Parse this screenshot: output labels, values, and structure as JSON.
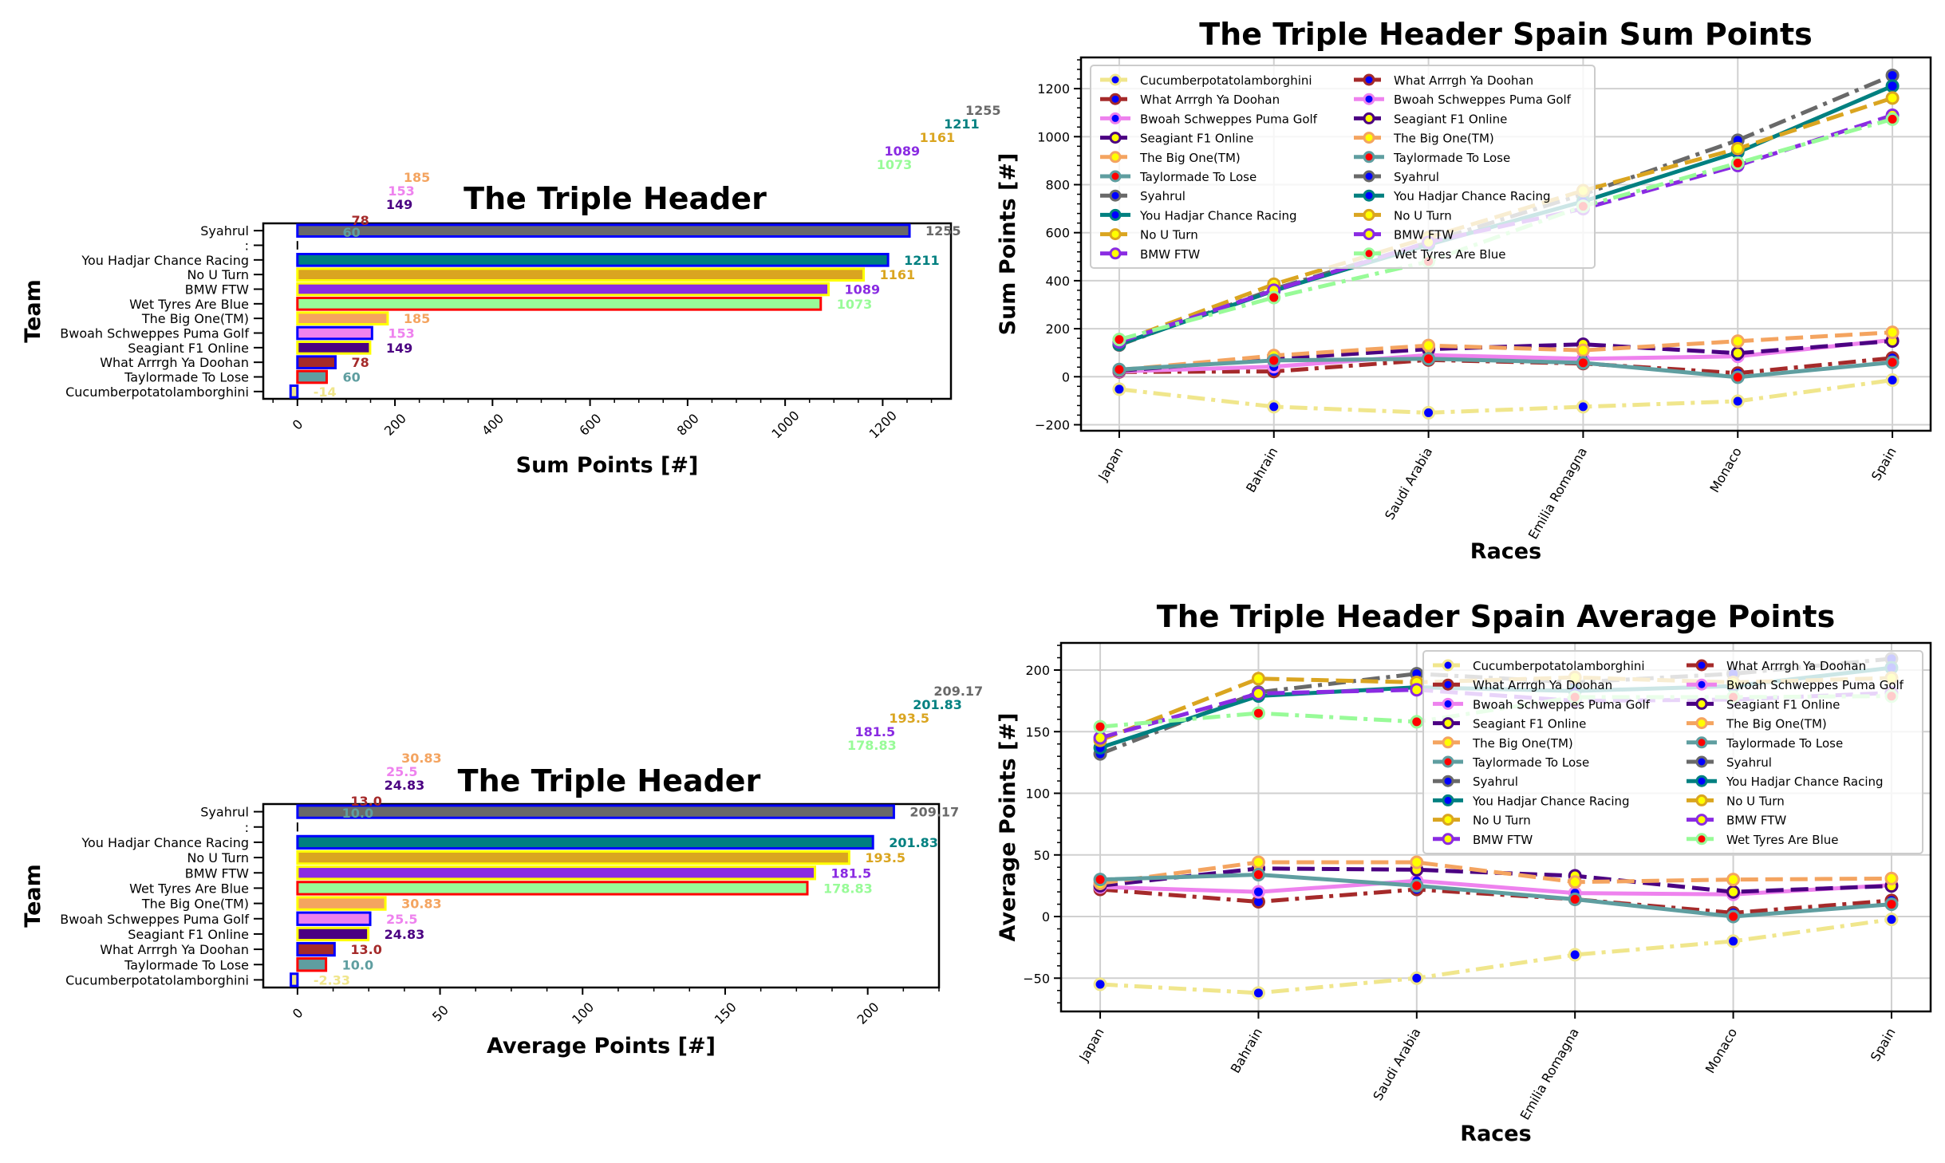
{
  "chart_data": [
    {
      "id": "sum-bar",
      "type": "bar",
      "orientation": "horizontal",
      "title": "The Triple Header",
      "xlabel": "Sum Points [#]",
      "ylabel": "Team",
      "xlim": [
        -70,
        1340
      ],
      "xticks": [
        "0",
        "200",
        "400",
        "600",
        "800",
        "1000",
        "1200"
      ],
      "xtick_values": [
        0,
        200,
        400,
        600,
        800,
        1000,
        1200
      ],
      "categories": [
        "Syahrul",
        ":",
        "You Hadjar Chance Racing",
        "No U Turn",
        "BMW FTW",
        "Wet Tyres Are Blue",
        "The Big One(TM)",
        "Bwoah Schweppes Puma Golf",
        "Seagiant F1 Online",
        "What Arrrgh Ya Doohan",
        "Taylormade To Lose",
        "Cucumberpotatolamborghini"
      ],
      "values": [
        1255,
        0,
        1211,
        1161,
        1089,
        1073,
        185,
        153,
        149,
        78,
        60,
        -14
      ],
      "labels": [
        "1255",
        "",
        "1211",
        "1161",
        "1089",
        "1073",
        "185",
        "153",
        "149",
        "78",
        "60",
        "-14"
      ],
      "fill_colors": [
        "#696969",
        "#000000",
        "#008080",
        "#DAA520",
        "#8A2BE2",
        "#98FB98",
        "#F4A460",
        "#EE82EE",
        "#4B0082",
        "#A52A2A",
        "#5F9EA0",
        "#F0E68C"
      ],
      "edge_colors": [
        "#0000FF",
        "#000000",
        "#0000FF",
        "#FFFF00",
        "#FFFF00",
        "#FF0000",
        "#FFFF00",
        "#0000FF",
        "#FFFF00",
        "#0000FF",
        "#FF0000",
        "#0000FF"
      ],
      "label_colors": [
        "#696969",
        "#000000",
        "#008080",
        "#DAA520",
        "#8A2BE2",
        "#98FB98",
        "#F4A460",
        "#EE82EE",
        "#4B0082",
        "#A52A2A",
        "#5F9EA0",
        "#F0E68C"
      ]
    },
    {
      "id": "avg-bar",
      "type": "bar",
      "orientation": "horizontal",
      "title": "The Triple Header",
      "xlabel": "Average Points [#]",
      "ylabel": "Team",
      "xlim": [
        -12,
        225
      ],
      "xticks": [
        "0",
        "50",
        "100",
        "150",
        "200"
      ],
      "xtick_values": [
        0,
        50,
        100,
        150,
        200
      ],
      "categories": [
        "Syahrul",
        ":",
        "You Hadjar Chance Racing",
        "No U Turn",
        "BMW FTW",
        "Wet Tyres Are Blue",
        "The Big One(TM)",
        "Bwoah Schweppes Puma Golf",
        "Seagiant F1 Online",
        "What Arrrgh Ya Doohan",
        "Taylormade To Lose",
        "Cucumberpotatolamborghini"
      ],
      "values": [
        209.17,
        0,
        201.83,
        193.5,
        181.5,
        178.83,
        30.83,
        25.5,
        24.83,
        13.0,
        10.0,
        -2.33
      ],
      "labels": [
        "209.17",
        "",
        "201.83",
        "193.5",
        "181.5",
        "178.83",
        "30.83",
        "25.5",
        "24.83",
        "13.0",
        "10.0",
        "-2.33"
      ],
      "fill_colors": [
        "#696969",
        "#000000",
        "#008080",
        "#DAA520",
        "#8A2BE2",
        "#98FB98",
        "#F4A460",
        "#EE82EE",
        "#4B0082",
        "#A52A2A",
        "#5F9EA0",
        "#F0E68C"
      ],
      "edge_colors": [
        "#0000FF",
        "#000000",
        "#0000FF",
        "#FFFF00",
        "#FFFF00",
        "#FF0000",
        "#FFFF00",
        "#0000FF",
        "#FFFF00",
        "#0000FF",
        "#FF0000",
        "#0000FF"
      ],
      "label_colors": [
        "#696969",
        "#000000",
        "#008080",
        "#DAA520",
        "#8A2BE2",
        "#98FB98",
        "#F4A460",
        "#EE82EE",
        "#4B0082",
        "#A52A2A",
        "#5F9EA0",
        "#F0E68C"
      ]
    },
    {
      "id": "sum-line",
      "type": "line",
      "title": "The Triple Header Spain Sum Points",
      "xlabel": "Races",
      "ylabel": "Sum Points [#]",
      "x": [
        "Japan",
        "Bahrain",
        "Saudi Arabia",
        "Emilia Romagna",
        "Monaco",
        "Spain"
      ],
      "ylim": [
        -225,
        1330
      ],
      "yticks": [
        "−200",
        "0",
        "200",
        "400",
        "600",
        "800",
        "1000",
        "1200"
      ],
      "ytick_values": [
        -200,
        0,
        200,
        400,
        600,
        800,
        1000,
        1200
      ],
      "grid": true,
      "legend": {
        "placement": "upper-left",
        "columns": 2
      },
      "series": [
        {
          "name": "Cucumberpotatolamborghini",
          "values": [
            -52,
            -125,
            -150,
            -125,
            -102,
            -14
          ],
          "color": "#F0E68C",
          "marker_face": "#0000FF",
          "dash": "dashdot"
        },
        {
          "name": "What Arrrgh Ya Doohan",
          "values": [
            20,
            22,
            70,
            55,
            15,
            78
          ],
          "color": "#A52A2A",
          "marker_face": "#0000FF",
          "dash": "dashdot"
        },
        {
          "name": "Bwoah Schweppes Puma Golf",
          "values": [
            22,
            42,
            90,
            75,
            85,
            153
          ],
          "color": "#EE82EE",
          "marker_face": "#0000FF",
          "dash": "solid"
        },
        {
          "name": "Seagiant F1 Online",
          "values": [
            25,
            75,
            115,
            135,
            98,
            149
          ],
          "color": "#4B0082",
          "marker_face": "#FFFF00",
          "dash": "dashed"
        },
        {
          "name": "The Big One(TM)",
          "values": [
            28,
            88,
            130,
            110,
            148,
            185
          ],
          "color": "#F4A460",
          "marker_face": "#FFFF00",
          "dash": "dashed"
        },
        {
          "name": "Taylormade To Lose",
          "values": [
            30,
            68,
            75,
            58,
            -2,
            60
          ],
          "color": "#5F9EA0",
          "marker_face": "#FF0000",
          "dash": "solid"
        },
        {
          "name": "Syahrul",
          "values": [
            132,
            365,
            560,
            760,
            985,
            1255
          ],
          "color": "#696969",
          "marker_face": "#0000FF",
          "dash": "dashdot"
        },
        {
          "name": "You Hadjar Chance Racing",
          "values": [
            135,
            358,
            550,
            730,
            935,
            1211
          ],
          "color": "#008080",
          "marker_face": "#0000FF",
          "dash": "solid"
        },
        {
          "name": "No U Turn",
          "values": [
            145,
            385,
            580,
            775,
            950,
            1161
          ],
          "color": "#DAA520",
          "marker_face": "#FFFF00",
          "dash": "dashed"
        },
        {
          "name": "BMW FTW",
          "values": [
            145,
            360,
            560,
            700,
            880,
            1089
          ],
          "color": "#8A2BE2",
          "marker_face": "#FFFF00",
          "dash": "dashed"
        },
        {
          "name": "Wet Tyres Are Blue",
          "values": [
            155,
            330,
            480,
            710,
            890,
            1073
          ],
          "color": "#98FB98",
          "marker_face": "#FF0000",
          "dash": "dashdot"
        }
      ]
    },
    {
      "id": "avg-line",
      "type": "line",
      "title": "The Triple Header Spain Average Points",
      "xlabel": "Races",
      "ylabel": "Average Points [#]",
      "x": [
        "Japan",
        "Bahrain",
        "Saudi Arabia",
        "Emilia Romagna",
        "Monaco",
        "Spain"
      ],
      "ylim": [
        -77,
        222
      ],
      "yticks": [
        "−50",
        "0",
        "50",
        "100",
        "150",
        "200"
      ],
      "ytick_values": [
        -50,
        0,
        50,
        100,
        150,
        200
      ],
      "grid": true,
      "legend": {
        "placement": "upper-right",
        "columns": 2
      },
      "series": [
        {
          "name": "Cucumberpotatolamborghini",
          "values": [
            -55,
            -62,
            -50,
            -31,
            -20,
            -2.33
          ],
          "color": "#F0E68C",
          "marker_face": "#0000FF",
          "dash": "dashdot"
        },
        {
          "name": "What Arrrgh Ya Doohan",
          "values": [
            22,
            12,
            22,
            14,
            3,
            13
          ],
          "color": "#A52A2A",
          "marker_face": "#0000FF",
          "dash": "dashdot"
        },
        {
          "name": "Bwoah Schweppes Puma Golf",
          "values": [
            24,
            20,
            29,
            19,
            18,
            25.5
          ],
          "color": "#EE82EE",
          "marker_face": "#0000FF",
          "dash": "solid"
        },
        {
          "name": "Seagiant F1 Online",
          "values": [
            25,
            39,
            38,
            33,
            20,
            24.83
          ],
          "color": "#4B0082",
          "marker_face": "#FFFF00",
          "dash": "dashed"
        },
        {
          "name": "The Big One(TM)",
          "values": [
            27,
            44,
            44,
            28,
            30,
            30.83
          ],
          "color": "#F4A460",
          "marker_face": "#FFFF00",
          "dash": "dashed"
        },
        {
          "name": "Taylormade To Lose",
          "values": [
            30,
            34,
            25,
            14,
            0,
            10.0
          ],
          "color": "#5F9EA0",
          "marker_face": "#FF0000",
          "dash": "solid"
        },
        {
          "name": "Syahrul",
          "values": [
            132,
            182,
            197,
            190,
            197,
            209.17
          ],
          "color": "#696969",
          "marker_face": "#0000FF",
          "dash": "dashdot"
        },
        {
          "name": "You Hadjar Chance Racing",
          "values": [
            137,
            179,
            186,
            183,
            187,
            201.83
          ],
          "color": "#008080",
          "marker_face": "#0000FF",
          "dash": "solid"
        },
        {
          "name": "No U Turn",
          "values": [
            143,
            193,
            190,
            194,
            190,
            193.5
          ],
          "color": "#DAA520",
          "marker_face": "#FFFF00",
          "dash": "dashed"
        },
        {
          "name": "BMW FTW",
          "values": [
            145,
            181,
            184,
            175,
            176,
            181.5
          ],
          "color": "#8A2BE2",
          "marker_face": "#FFFF00",
          "dash": "dashed"
        },
        {
          "name": "Wet Tyres Are Blue",
          "values": [
            154,
            165,
            158,
            178,
            178,
            178.83
          ],
          "color": "#98FB98",
          "marker_face": "#FF0000",
          "dash": "dashdot"
        }
      ]
    }
  ]
}
